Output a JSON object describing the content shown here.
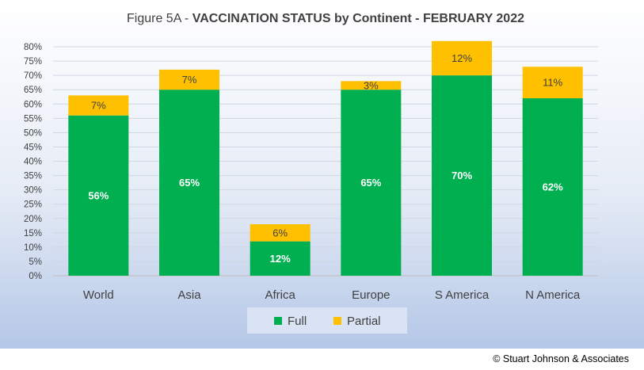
{
  "title": {
    "prefix": "Figure 5A - ",
    "bold": "VACCINATION STATUS by Continent - FEBRUARY 2022"
  },
  "credit": "© Stuart Johnson & Associates",
  "colors": {
    "full": "#00b050",
    "partial": "#ffc000",
    "plot_bg_top": "#ffffff",
    "plot_bg_bottom": "#b4c7e7",
    "legend_bg": "#dae3f3"
  },
  "chart_data": {
    "type": "bar",
    "stacked": true,
    "categories": [
      "World",
      "Asia",
      "Africa",
      "Europe",
      "S America",
      "N America"
    ],
    "series": [
      {
        "name": "Full",
        "values": [
          56,
          65,
          12,
          65,
          70,
          62
        ],
        "labels": [
          "56%",
          "65%",
          "12%",
          "65%",
          "70%",
          "62%"
        ]
      },
      {
        "name": "Partial",
        "values": [
          7,
          7,
          6,
          3,
          12,
          11
        ],
        "labels": [
          "7%",
          "7%",
          "6%",
          "3%",
          "12%",
          "11%"
        ]
      }
    ],
    "ylim": [
      0,
      80
    ],
    "yticks": [
      "0%",
      "5%",
      "10%",
      "15%",
      "20%",
      "25%",
      "30%",
      "35%",
      "40%",
      "45%",
      "50%",
      "55%",
      "60%",
      "65%",
      "70%",
      "75%",
      "80%"
    ],
    "grid": true,
    "legend": {
      "position": "bottom",
      "entries": [
        "Full",
        "Partial"
      ]
    }
  }
}
